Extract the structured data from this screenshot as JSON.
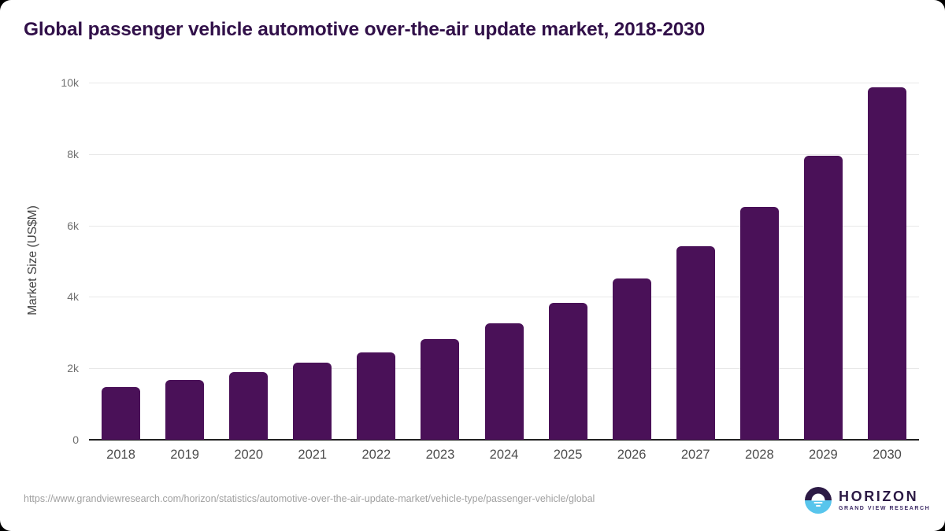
{
  "title": "Global passenger vehicle automotive over-the-air update market, 2018-2030",
  "footer": {
    "source_url": "https://www.grandviewresearch.com/horizon/statistics/automotive-over-the-air-update-market/vehicle-type/passenger-vehicle/global"
  },
  "logo": {
    "name": "HORIZON",
    "subtitle": "GRAND VIEW RESEARCH"
  },
  "colors": {
    "bar": "#4a1158",
    "title": "#311049",
    "gridline": "#e8e8e8",
    "axis_line": "#212121",
    "tick_label": "#6f6f6f",
    "x_label": "#4c4c4c",
    "source_url": "#a0a0a0",
    "logo_purple": "#2c1a45",
    "logo_blue": "#58c5ec"
  },
  "chart_data": {
    "type": "bar",
    "title": "Global passenger vehicle automotive over-the-air update market, 2018-2030",
    "categories": [
      "2018",
      "2019",
      "2020",
      "2021",
      "2022",
      "2023",
      "2024",
      "2025",
      "2026",
      "2027",
      "2028",
      "2029",
      "2030"
    ],
    "values": [
      1470,
      1680,
      1890,
      2160,
      2450,
      2830,
      3270,
      3840,
      4520,
      5410,
      6530,
      7960,
      9870
    ],
    "xlabel": "",
    "ylabel": "Market Size (US$M)",
    "ylim": [
      0,
      10000
    ],
    "yticks": [
      {
        "value": 0,
        "label": "0"
      },
      {
        "value": 2000,
        "label": "2k"
      },
      {
        "value": 4000,
        "label": "4k"
      },
      {
        "value": 6000,
        "label": "6k"
      },
      {
        "value": 8000,
        "label": "8k"
      },
      {
        "value": 10000,
        "label": "10k"
      }
    ],
    "grid": true,
    "legend": false,
    "bar_color": "#4a1158"
  }
}
